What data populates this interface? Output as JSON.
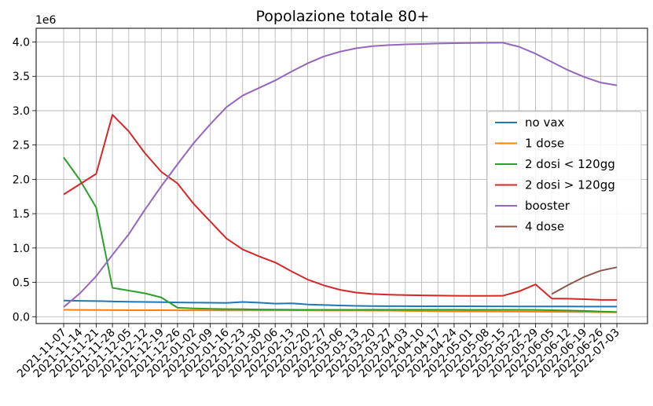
{
  "chart_data": {
    "type": "line",
    "title": "Popolazione totale 80+",
    "xlabel": "",
    "ylabel": "",
    "y_exponent_label": "1e6",
    "ylim": [
      -0.1,
      4.2
    ],
    "y_ticks": [
      0.0,
      0.5,
      1.0,
      1.5,
      2.0,
      2.5,
      3.0,
      3.5,
      4.0
    ],
    "y_tick_labels": [
      "0.0",
      "0.5",
      "1.0",
      "1.5",
      "2.0",
      "2.5",
      "3.0",
      "3.5",
      "4.0"
    ],
    "grid": true,
    "legend_position": "center-right",
    "categories": [
      "2021-11-07",
      "2021-11-14",
      "2021-11-21",
      "2021-11-28",
      "2021-12-05",
      "2021-12-12",
      "2021-12-19",
      "2021-12-26",
      "2022-01-02",
      "2022-01-09",
      "2022-01-16",
      "2022-01-23",
      "2022-01-30",
      "2022-02-06",
      "2022-02-13",
      "2022-02-20",
      "2022-02-27",
      "2022-03-06",
      "2022-03-13",
      "2022-03-20",
      "2022-03-27",
      "2022-04-03",
      "2022-04-10",
      "2022-04-17",
      "2022-04-24",
      "2022-05-01",
      "2022-05-08",
      "2022-05-15",
      "2022-05-22",
      "2022-05-29",
      "2022-06-05",
      "2022-06-12",
      "2022-06-19",
      "2022-06-26",
      "2022-07-03"
    ],
    "series": [
      {
        "name": "no vax",
        "color": "#1f77b4",
        "values": [
          0.235,
          0.23,
          0.228,
          0.222,
          0.218,
          0.215,
          0.212,
          0.208,
          0.205,
          0.203,
          0.2,
          0.215,
          0.205,
          0.19,
          0.195,
          0.178,
          0.17,
          0.163,
          0.158,
          0.155,
          0.153,
          0.153,
          0.152,
          0.152,
          0.151,
          0.151,
          0.15,
          0.15,
          0.149,
          0.149,
          0.148,
          0.148,
          0.147,
          0.147,
          0.147
        ]
      },
      {
        "name": "1 dose",
        "color": "#ff7f0e",
        "values": [
          0.1,
          0.099,
          0.097,
          0.096,
          0.095,
          0.094,
          0.094,
          0.093,
          0.093,
          0.092,
          0.092,
          0.092,
          0.091,
          0.091,
          0.091,
          0.091,
          0.09,
          0.09,
          0.09,
          0.089,
          0.088,
          0.085,
          0.083,
          0.08,
          0.078,
          0.077,
          0.076,
          0.075,
          0.074,
          0.073,
          0.072,
          0.07,
          0.068,
          0.066,
          0.064
        ]
      },
      {
        "name": "2 dosi < 120gg",
        "color": "#2ca02c",
        "values": [
          2.32,
          1.99,
          1.59,
          0.42,
          0.38,
          0.34,
          0.28,
          0.13,
          0.12,
          0.115,
          0.11,
          0.108,
          0.105,
          0.103,
          0.101,
          0.1,
          0.1,
          0.1,
          0.1,
          0.101,
          0.101,
          0.101,
          0.101,
          0.101,
          0.101,
          0.1,
          0.1,
          0.1,
          0.1,
          0.099,
          0.095,
          0.09,
          0.085,
          0.075,
          0.068
        ]
      },
      {
        "name": "2 dosi > 120gg",
        "color": "#d62728",
        "values": [
          1.78,
          1.93,
          2.08,
          2.94,
          2.7,
          2.38,
          2.11,
          1.94,
          1.64,
          1.39,
          1.14,
          0.98,
          0.88,
          0.79,
          0.66,
          0.54,
          0.455,
          0.39,
          0.35,
          0.33,
          0.32,
          0.315,
          0.31,
          0.308,
          0.305,
          0.303,
          0.303,
          0.305,
          0.37,
          0.47,
          0.265,
          0.262,
          0.255,
          0.245,
          0.245
        ]
      },
      {
        "name": "booster",
        "color": "#9467bd",
        "values": [
          0.14,
          0.34,
          0.59,
          0.9,
          1.2,
          1.56,
          1.9,
          2.22,
          2.53,
          2.8,
          3.05,
          3.22,
          3.33,
          3.44,
          3.57,
          3.69,
          3.79,
          3.86,
          3.91,
          3.94,
          3.955,
          3.965,
          3.972,
          3.978,
          3.983,
          3.986,
          3.988,
          3.99,
          3.93,
          3.83,
          3.71,
          3.59,
          3.49,
          3.41,
          3.37
        ]
      },
      {
        "name": "4 dose",
        "color": "#8c564b",
        "values": [
          null,
          null,
          null,
          null,
          null,
          null,
          null,
          null,
          null,
          null,
          null,
          null,
          null,
          null,
          null,
          null,
          null,
          null,
          null,
          null,
          null,
          null,
          null,
          null,
          null,
          null,
          null,
          null,
          null,
          null,
          0.33,
          0.46,
          0.58,
          0.67,
          0.72
        ]
      }
    ]
  }
}
